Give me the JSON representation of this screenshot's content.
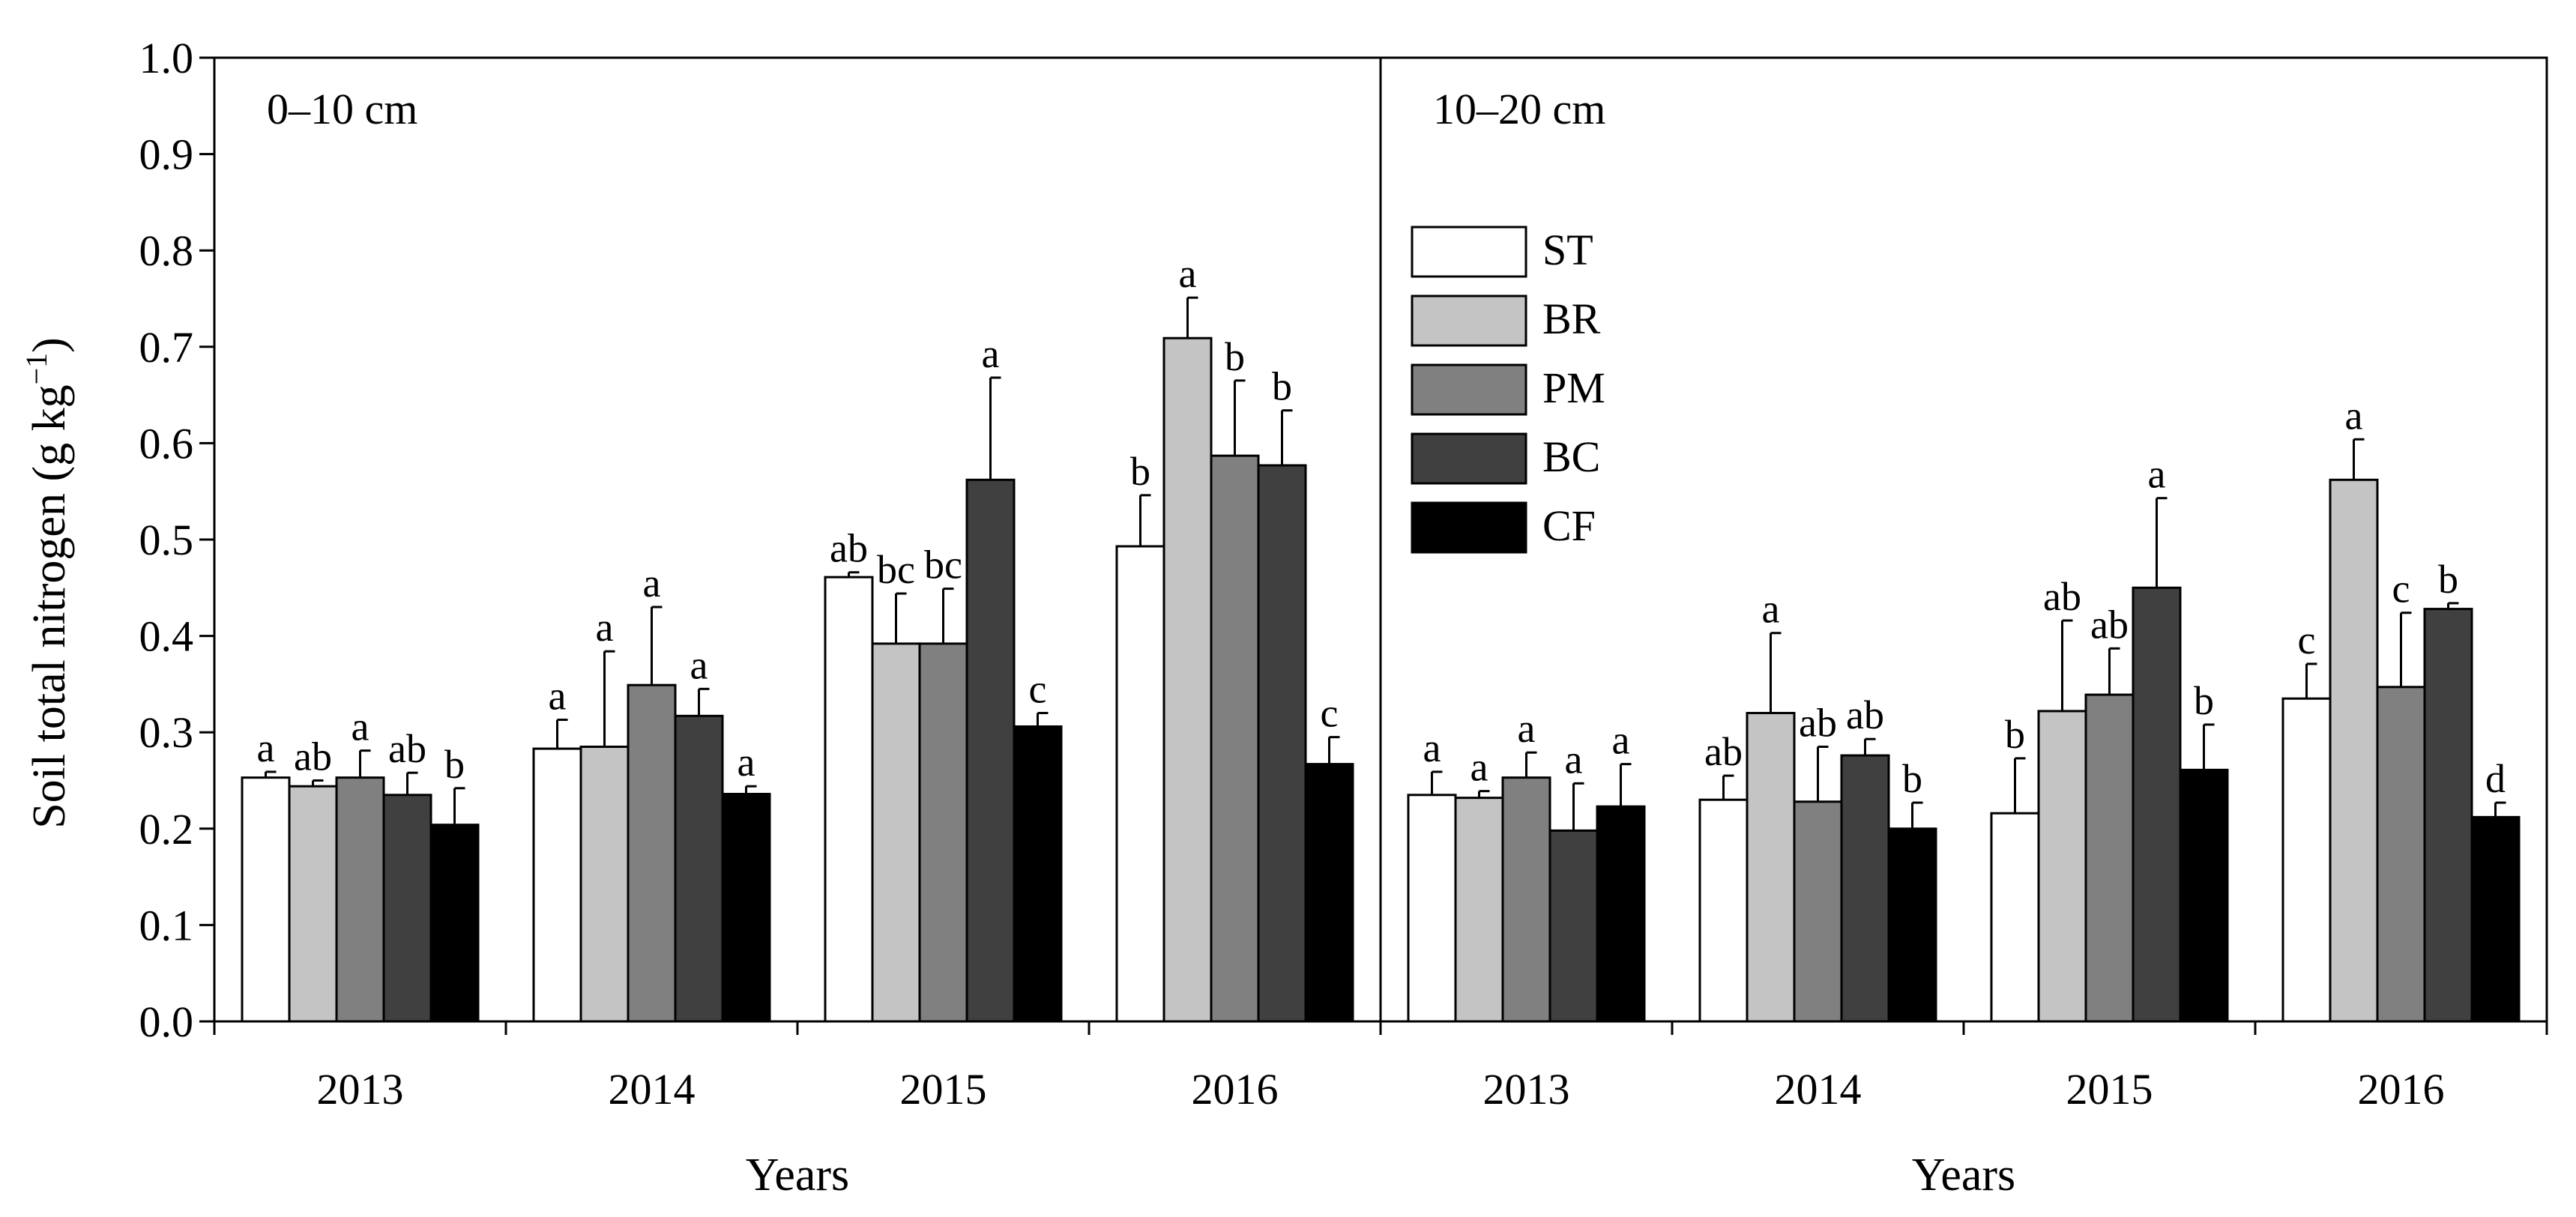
{
  "chart_data": {
    "type": "bar",
    "ylabel": "Soil total nitrogen (g kg−1)",
    "ylabel_main": "Soil total nitrogen (g kg",
    "ylabel_sup": "−1",
    "ylabel_close": ")",
    "ylim": [
      0,
      1.0
    ],
    "yticks": [
      "0.0",
      "0.1",
      "0.2",
      "0.3",
      "0.4",
      "0.5",
      "0.6",
      "0.7",
      "0.8",
      "0.9",
      "1.0"
    ],
    "legend": {
      "placement": "right-panel upper-left",
      "entries": [
        {
          "name": "ST",
          "color": "#ffffff"
        },
        {
          "name": "BR",
          "color": "#c4c4c4"
        },
        {
          "name": "PM",
          "color": "#808080"
        },
        {
          "name": "BC",
          "color": "#404040"
        },
        {
          "name": "CF",
          "color": "#000000"
        }
      ]
    },
    "panels": [
      {
        "label": "0–10 cm",
        "xlabel": "Years",
        "categories": [
          "2013",
          "2014",
          "2015",
          "2016"
        ],
        "series": [
          {
            "name": "ST",
            "values": [
              0.253,
              0.283,
              0.461,
              0.493
            ],
            "errors": [
              0.006,
              0.03,
              0.005,
              0.053
            ],
            "letters": [
              "a",
              "a",
              "ab",
              "b"
            ]
          },
          {
            "name": "BR",
            "values": [
              0.244,
              0.285,
              0.392,
              0.709
            ],
            "errors": [
              0.006,
              0.099,
              0.052,
              0.042
            ],
            "letters": [
              "ab",
              "a",
              "bc",
              "a"
            ]
          },
          {
            "name": "PM",
            "values": [
              0.253,
              0.349,
              0.392,
              0.587
            ],
            "errors": [
              0.028,
              0.081,
              0.057,
              0.078
            ],
            "letters": [
              "a",
              "a",
              "bc",
              "b"
            ]
          },
          {
            "name": "BC",
            "values": [
              0.235,
              0.317,
              0.562,
              0.577
            ],
            "errors": [
              0.023,
              0.028,
              0.106,
              0.057
            ],
            "letters": [
              "ab",
              "a",
              "a",
              "b"
            ]
          },
          {
            "name": "CF",
            "values": [
              0.204,
              0.236,
              0.306,
              0.267
            ],
            "errors": [
              0.038,
              0.008,
              0.014,
              0.028
            ],
            "letters": [
              "b",
              "a",
              "c",
              "c"
            ]
          }
        ]
      },
      {
        "label": "10–20 cm",
        "xlabel": "Years",
        "categories": [
          "2013",
          "2014",
          "2015",
          "2016"
        ],
        "series": [
          {
            "name": "ST",
            "values": [
              0.235,
              0.23,
              0.216,
              0.335
            ],
            "errors": [
              0.024,
              0.025,
              0.057,
              0.036
            ],
            "letters": [
              "a",
              "ab",
              "b",
              "c"
            ]
          },
          {
            "name": "BR",
            "values": [
              0.232,
              0.32,
              0.322,
              0.562
            ],
            "errors": [
              0.007,
              0.083,
              0.094,
              0.042
            ],
            "letters": [
              "a",
              "a",
              "ab",
              "a"
            ]
          },
          {
            "name": "PM",
            "values": [
              0.253,
              0.228,
              0.339,
              0.347
            ],
            "errors": [
              0.026,
              0.057,
              0.048,
              0.077
            ],
            "letters": [
              "a",
              "ab",
              "ab",
              "c"
            ]
          },
          {
            "name": "BC",
            "values": [
              0.198,
              0.276,
              0.45,
              0.428
            ],
            "errors": [
              0.049,
              0.017,
              0.093,
              0.006
            ],
            "letters": [
              "a",
              "ab",
              "a",
              "b"
            ]
          },
          {
            "name": "CF",
            "values": [
              0.223,
              0.2,
              0.261,
              0.212
            ],
            "errors": [
              0.044,
              0.027,
              0.047,
              0.015
            ],
            "letters": [
              "a",
              "b",
              "b",
              "d"
            ]
          }
        ]
      }
    ]
  }
}
